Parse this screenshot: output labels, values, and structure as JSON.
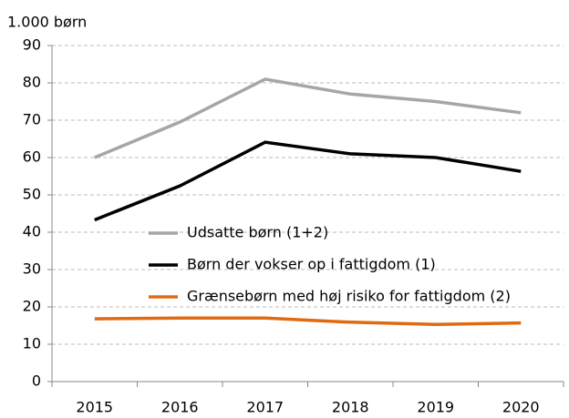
{
  "chart_data": {
    "type": "line",
    "y_axis_label": "1.000 børn",
    "categories": [
      "2015",
      "2016",
      "2017",
      "2018",
      "2019",
      "2020"
    ],
    "series": [
      {
        "name": "Udsatte børn (1+2)",
        "color": "#a6a6a6",
        "values": [
          60,
          69.5,
          81,
          77,
          75,
          72
        ]
      },
      {
        "name": "Børn der vokser op i fattigdom (1)",
        "color": "#000000",
        "values": [
          43.3,
          52.4,
          64.1,
          61,
          60,
          56.3
        ]
      },
      {
        "name": "Grænsebørn med høj risiko for fattigdom (2)",
        "color": "#e06a10",
        "values": [
          16.8,
          17,
          17,
          15.9,
          15.3,
          15.7
        ]
      }
    ],
    "ylim": [
      0,
      90
    ],
    "yticks": [
      0,
      10,
      20,
      30,
      40,
      50,
      60,
      70,
      80,
      90
    ],
    "grid": true,
    "legend": "center"
  }
}
